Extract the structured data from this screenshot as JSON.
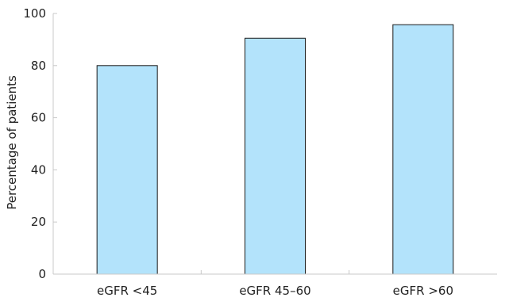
{
  "chart_data": {
    "type": "bar",
    "categories": [
      "eGFR <45",
      "eGFR 45–60",
      "eGFR >60"
    ],
    "values": [
      80,
      90.5,
      95.7
    ],
    "title": "",
    "xlabel": "",
    "ylabel": "Percentage of patients",
    "ylim": [
      0,
      100
    ],
    "yticks": [
      "0",
      "20",
      "40",
      "60",
      "80",
      "100"
    ],
    "grid": false,
    "bar_fill": "#b3e3fb",
    "bar_stroke": "#1a1a1a",
    "axis_color": "#c8c8c8",
    "text_color": "#222222"
  }
}
